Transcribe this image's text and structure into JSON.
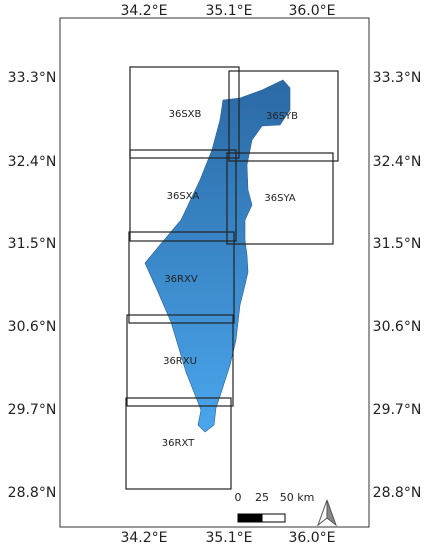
{
  "longitude_labels": [
    "34.2°E",
    "35.1°E",
    "36.0°E"
  ],
  "latitude_labels": [
    "33.3°N",
    "32.4°N",
    "31.5°N",
    "30.6°N",
    "29.7°N",
    "28.8°N"
  ],
  "tiles": [
    {
      "label": "36SXB"
    },
    {
      "label": "36SYB"
    },
    {
      "label": "36SXA"
    },
    {
      "label": "36SYA"
    },
    {
      "label": "36RXV"
    },
    {
      "label": "36RXU"
    },
    {
      "label": "36RXT"
    }
  ],
  "scale_bar": {
    "labels": [
      "0",
      "25",
      "50 km"
    ]
  }
}
